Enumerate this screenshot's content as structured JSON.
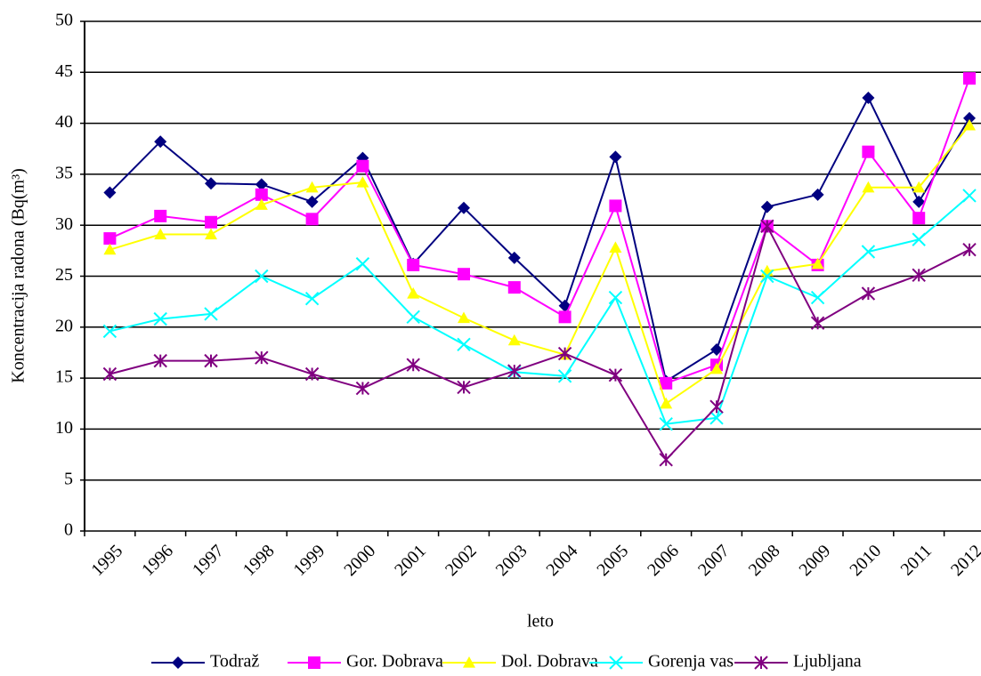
{
  "chart_data": {
    "type": "line",
    "x_label": "leto",
    "y_label": "Koncentracija radona (Bq(m³)",
    "categories": [
      "1995",
      "1996",
      "1997",
      "1998",
      "1999",
      "2000",
      "2001",
      "2002",
      "2003",
      "2004",
      "2005",
      "2006",
      "2007",
      "2008",
      "2009",
      "2010",
      "2011",
      "2012"
    ],
    "ylim": [
      0,
      50
    ],
    "yticks": [
      0,
      5,
      10,
      15,
      20,
      25,
      30,
      35,
      40,
      45,
      50
    ],
    "grid": true,
    "legend": "bottom",
    "series": [
      {
        "name": "Todraž",
        "color": "#000080",
        "marker": "diamond",
        "values": [
          33.2,
          38.2,
          34.1,
          34.0,
          32.3,
          36.6,
          26.2,
          31.7,
          26.8,
          22.1,
          36.7,
          14.7,
          17.8,
          31.8,
          33.0,
          42.5,
          32.3,
          40.5
        ]
      },
      {
        "name": "Gor. Dobrava",
        "color": "#ff00ff",
        "marker": "square",
        "values": [
          28.7,
          30.9,
          30.3,
          33.0,
          30.6,
          35.8,
          26.1,
          25.2,
          23.9,
          21.0,
          31.9,
          14.5,
          16.3,
          29.9,
          26.1,
          37.2,
          30.7,
          44.4
        ]
      },
      {
        "name": "Dol. Dobrava",
        "color": "#ffff00",
        "marker": "triangle",
        "values": [
          27.6,
          29.1,
          29.1,
          32.0,
          33.7,
          34.2,
          23.3,
          20.9,
          18.7,
          17.3,
          27.8,
          12.5,
          15.9,
          25.5,
          26.2,
          33.7,
          33.7,
          39.8
        ]
      },
      {
        "name": "Gorenja vas",
        "color": "#00ffff",
        "marker": "x",
        "values": [
          19.6,
          20.8,
          21.3,
          25.0,
          22.8,
          26.2,
          21.0,
          18.3,
          15.6,
          15.2,
          22.9,
          10.5,
          11.1,
          25.0,
          22.9,
          27.4,
          28.6,
          32.9
        ]
      },
      {
        "name": "Ljubljana",
        "color": "#800080",
        "marker": "star",
        "values": [
          15.4,
          16.7,
          16.7,
          17.0,
          15.4,
          14.0,
          16.3,
          14.1,
          15.7,
          17.4,
          15.3,
          7.0,
          12.2,
          29.9,
          20.4,
          23.3,
          25.1,
          27.6
        ]
      }
    ]
  }
}
